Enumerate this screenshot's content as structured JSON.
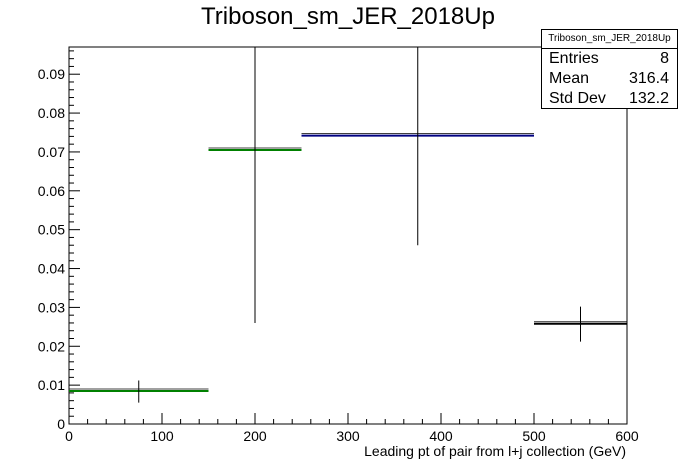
{
  "chart_data": {
    "type": "histogram",
    "title": "Triboson_sm_JER_2018Up",
    "xlabel": "Leading pt of pair from l+j collection (GeV)",
    "ylabel": "",
    "xlim": [
      0,
      600
    ],
    "ylim": [
      0,
      0.097
    ],
    "x_ticks": [
      0,
      100,
      200,
      300,
      400,
      500,
      600
    ],
    "y_ticks": [
      0,
      0.01,
      0.02,
      0.03,
      0.04,
      0.05,
      0.06,
      0.07,
      0.08,
      0.09
    ],
    "y_tick_labels": [
      "0",
      "0.01",
      "0.02",
      "0.03",
      "0.04",
      "0.05",
      "0.06",
      "0.07",
      "0.08",
      "0.09"
    ],
    "grid": false,
    "bins": [
      {
        "x_low": 0,
        "x_high": 150,
        "y": 0.0085,
        "err_low": 0.0055,
        "err_high": 0.0112,
        "color": "#008000"
      },
      {
        "x_low": 150,
        "x_high": 250,
        "y": 0.0705,
        "err_low": 0.026,
        "err_high": 0.097,
        "color": "#008000"
      },
      {
        "x_low": 250,
        "x_high": 500,
        "y": 0.0742,
        "err_low": 0.046,
        "err_high": 0.097,
        "color": "#000080"
      },
      {
        "x_low": 500,
        "x_high": 600,
        "y": 0.0258,
        "err_low": 0.0212,
        "err_high": 0.0302,
        "color": "#000000"
      }
    ],
    "stats": {
      "name": "Triboson_sm_JER_2018Up",
      "rows": [
        {
          "label": "Entries",
          "value": "8"
        },
        {
          "label": "Mean",
          "value": "316.4"
        },
        {
          "label": "Std Dev",
          "value": "132.2"
        }
      ]
    }
  }
}
